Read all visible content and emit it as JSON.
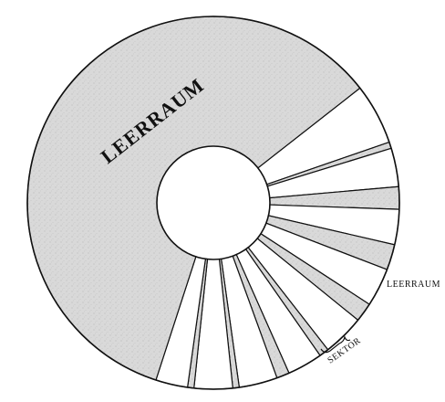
{
  "labels": {
    "free_space_large": "LEERRAUM",
    "free_space_small": "LEERRAUM",
    "sector": "SEKTOR"
  },
  "colors": {
    "free_space": "#d6d6d6",
    "sector": "#ffffff",
    "outline": "#111111"
  }
}
